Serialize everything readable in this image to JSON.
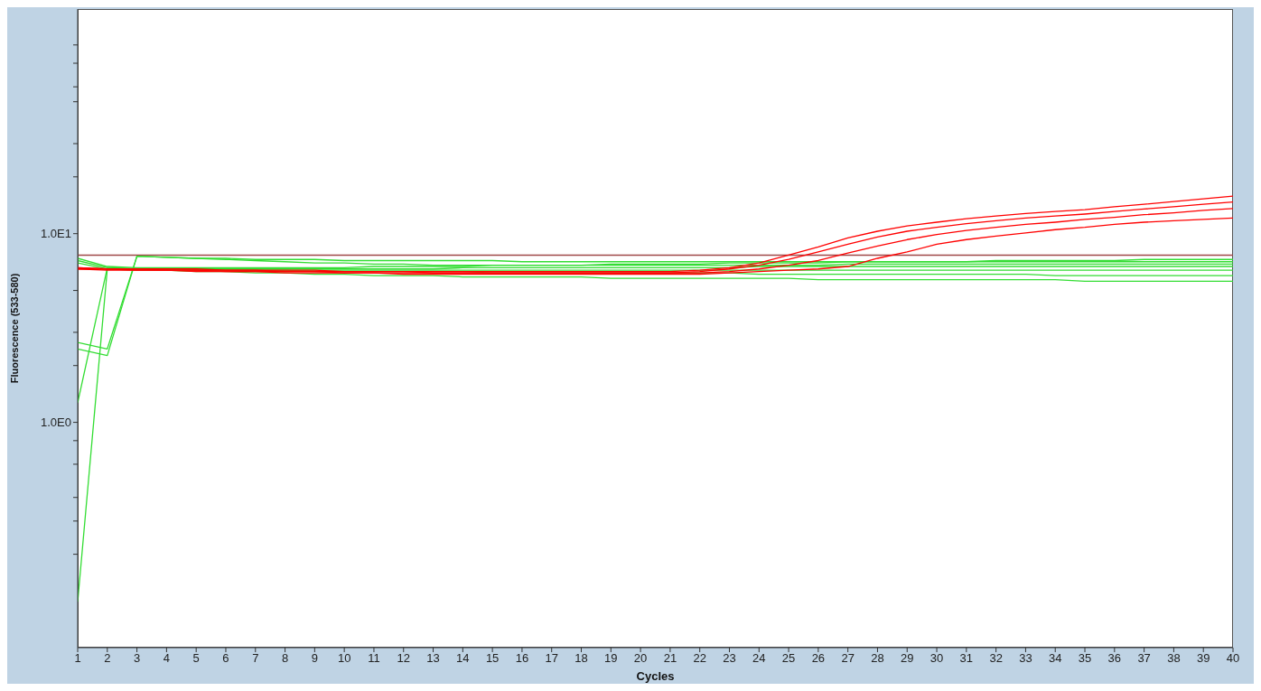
{
  "chart_data": {
    "type": "line",
    "xlabel": "Cycles",
    "ylabel": "Fluorescence (533-580)",
    "log": "y",
    "x": [
      1,
      2,
      3,
      4,
      5,
      6,
      7,
      8,
      9,
      10,
      11,
      12,
      13,
      14,
      15,
      16,
      17,
      18,
      19,
      20,
      21,
      22,
      23,
      24,
      25,
      26,
      27,
      28,
      29,
      30,
      31,
      32,
      33,
      34,
      35,
      36,
      37,
      38,
      39,
      40
    ],
    "xlim": [
      1,
      40
    ],
    "xticks": [
      1,
      2,
      3,
      4,
      5,
      6,
      7,
      8,
      9,
      10,
      11,
      12,
      13,
      14,
      15,
      16,
      17,
      18,
      19,
      20,
      21,
      22,
      23,
      24,
      25,
      26,
      27,
      28,
      29,
      30,
      31,
      32,
      33,
      34,
      35,
      36,
      37,
      38,
      39,
      40
    ],
    "ylim": [
      0.064,
      155
    ],
    "yticks": [
      {
        "value": 0.2,
        "label": null
      },
      {
        "value": 0.3,
        "label": null
      },
      {
        "value": 0.4,
        "label": null
      },
      {
        "value": 0.6,
        "label": null
      },
      {
        "value": 0.8,
        "label": null
      },
      {
        "value": 1,
        "label": "1.0E0"
      },
      {
        "value": 2,
        "label": null
      },
      {
        "value": 3,
        "label": null
      },
      {
        "value": 5,
        "label": null
      },
      {
        "value": 10,
        "label": "1.0E1"
      },
      {
        "value": 20,
        "label": null
      },
      {
        "value": 30,
        "label": null
      },
      {
        "value": 50,
        "label": null
      },
      {
        "value": 60,
        "label": null
      },
      {
        "value": 80,
        "label": null
      },
      {
        "value": 100,
        "label": null
      }
    ],
    "ref_lines": [
      {
        "axis": "y",
        "value": 7.7,
        "color": "#a04848"
      }
    ],
    "series": [
      {
        "color": "#33dd33",
        "values": [
          7.4,
          6.7,
          6.6,
          6.6,
          6.6,
          6.6,
          6.6,
          6.6,
          6.6,
          6.6,
          6.7,
          6.7,
          6.7,
          6.7,
          6.8,
          6.8,
          6.8,
          6.8,
          6.9,
          6.9,
          6.9,
          6.9,
          7.0,
          7.0,
          7.0,
          7.0,
          7.1,
          7.1,
          7.1,
          7.1,
          7.1,
          7.2,
          7.2,
          7.2,
          7.2,
          7.2,
          7.3,
          7.3,
          7.3,
          7.3
        ]
      },
      {
        "color": "#33dd33",
        "values": [
          7.2,
          6.6,
          6.5,
          6.5,
          6.4,
          6.4,
          6.4,
          6.4,
          6.3,
          6.3,
          6.3,
          6.3,
          6.3,
          6.3,
          6.2,
          6.2,
          6.2,
          6.2,
          6.2,
          6.2,
          6.2,
          6.2,
          6.2,
          6.1,
          6.1,
          6.1,
          6.1,
          6.1,
          6.1,
          6.1,
          6.1,
          6.1,
          6.1,
          6.0,
          6.0,
          6.0,
          6.0,
          6.0,
          6.0,
          6.0
        ]
      },
      {
        "color": "#33dd33",
        "values": [
          7.0,
          6.5,
          6.4,
          6.4,
          6.3,
          6.3,
          6.2,
          6.2,
          6.1,
          6.1,
          6.0,
          6.0,
          6.0,
          5.9,
          5.9,
          5.9,
          5.9,
          5.9,
          5.8,
          5.8,
          5.8,
          5.8,
          5.8,
          5.8,
          5.8,
          5.7,
          5.7,
          5.7,
          5.7,
          5.7,
          5.7,
          5.7,
          5.7,
          5.7,
          5.6,
          5.6,
          5.6,
          5.6,
          5.6,
          5.6
        ]
      },
      {
        "color": "#33dd33",
        "values": [
          1.27,
          6.6,
          6.5,
          6.5,
          6.5,
          6.5,
          6.5,
          6.5,
          6.5,
          6.5,
          6.5,
          6.5,
          6.5,
          6.6,
          6.6,
          6.6,
          6.6,
          6.6,
          6.6,
          6.6,
          6.6,
          6.6,
          6.6,
          6.7,
          6.7,
          6.7,
          6.7,
          6.7,
          6.7,
          6.7,
          6.7,
          6.7,
          6.7,
          6.7,
          6.7,
          6.7,
          6.7,
          6.7,
          6.7,
          6.7
        ]
      },
      {
        "color": "#33dd33",
        "values": [
          0.112,
          6.5,
          6.5,
          6.5,
          6.4,
          6.4,
          6.4,
          6.4,
          6.4,
          6.4,
          6.4,
          6.4,
          6.4,
          6.4,
          6.4,
          6.4,
          6.4,
          6.4,
          6.4,
          6.4,
          6.4,
          6.4,
          6.4,
          6.4,
          6.4,
          6.4,
          6.4,
          6.4,
          6.4,
          6.4,
          6.4,
          6.4,
          6.4,
          6.4,
          6.4,
          6.4,
          6.4,
          6.4,
          6.4,
          6.4
        ]
      },
      {
        "color": "#33dd33",
        "values": [
          2.65,
          2.45,
          7.6,
          7.5,
          7.4,
          7.4,
          7.3,
          7.3,
          7.3,
          7.2,
          7.2,
          7.2,
          7.2,
          7.2,
          7.2,
          7.1,
          7.1,
          7.1,
          7.1,
          7.1,
          7.1,
          7.1,
          7.1,
          7.1,
          7.1,
          7.1,
          7.1,
          7.1,
          7.1,
          7.1,
          7.1,
          7.1,
          7.1,
          7.1,
          7.1,
          7.1,
          7.1,
          7.1,
          7.1,
          7.1
        ]
      },
      {
        "color": "#33dd33",
        "values": [
          2.45,
          2.26,
          7.6,
          7.5,
          7.4,
          7.3,
          7.2,
          7.1,
          7.0,
          7.0,
          6.9,
          6.9,
          6.8,
          6.8,
          6.8,
          6.8,
          6.8,
          6.8,
          6.8,
          6.8,
          6.8,
          6.8,
          6.8,
          6.8,
          6.8,
          6.8,
          6.9,
          6.9,
          6.9,
          6.9,
          6.9,
          6.9,
          6.9,
          6.9,
          6.9,
          6.9,
          6.9,
          6.9,
          6.9,
          6.9
        ]
      },
      {
        "color": "#ff0000",
        "values": [
          6.6,
          6.5,
          6.5,
          6.5,
          6.5,
          6.4,
          6.4,
          6.4,
          6.4,
          6.3,
          6.3,
          6.3,
          6.3,
          6.3,
          6.3,
          6.3,
          6.3,
          6.3,
          6.3,
          6.3,
          6.3,
          6.4,
          6.6,
          7.0,
          7.7,
          8.5,
          9.5,
          10.3,
          11.0,
          11.5,
          12.0,
          12.4,
          12.8,
          13.1,
          13.4,
          13.9,
          14.3,
          14.8,
          15.3,
          15.8
        ]
      },
      {
        "color": "#ff0000",
        "values": [
          6.6,
          6.5,
          6.5,
          6.4,
          6.4,
          6.4,
          6.4,
          6.3,
          6.3,
          6.3,
          6.3,
          6.3,
          6.2,
          6.2,
          6.2,
          6.2,
          6.2,
          6.2,
          6.2,
          6.2,
          6.2,
          6.3,
          6.5,
          6.8,
          7.3,
          8.0,
          8.8,
          9.6,
          10.3,
          10.8,
          11.3,
          11.7,
          12.1,
          12.4,
          12.7,
          13.1,
          13.5,
          13.9,
          14.3,
          14.7
        ]
      },
      {
        "color": "#ff0000",
        "values": [
          6.5,
          6.5,
          6.4,
          6.4,
          6.4,
          6.3,
          6.3,
          6.3,
          6.3,
          6.2,
          6.2,
          6.2,
          6.2,
          6.2,
          6.2,
          6.2,
          6.2,
          6.2,
          6.2,
          6.2,
          6.2,
          6.2,
          6.3,
          6.5,
          6.8,
          7.2,
          7.9,
          8.6,
          9.3,
          9.9,
          10.4,
          10.8,
          11.2,
          11.5,
          11.9,
          12.2,
          12.6,
          12.9,
          13.3,
          13.6
        ]
      },
      {
        "color": "#ff0000",
        "values": [
          6.5,
          6.4,
          6.4,
          6.4,
          6.3,
          6.3,
          6.3,
          6.2,
          6.2,
          6.2,
          6.2,
          6.1,
          6.1,
          6.1,
          6.1,
          6.1,
          6.1,
          6.1,
          6.1,
          6.1,
          6.1,
          6.1,
          6.2,
          6.3,
          6.4,
          6.5,
          6.7,
          7.4,
          8.0,
          8.8,
          9.3,
          9.7,
          10.1,
          10.5,
          10.8,
          11.2,
          11.5,
          11.7,
          11.9,
          12.1
        ]
      }
    ]
  }
}
